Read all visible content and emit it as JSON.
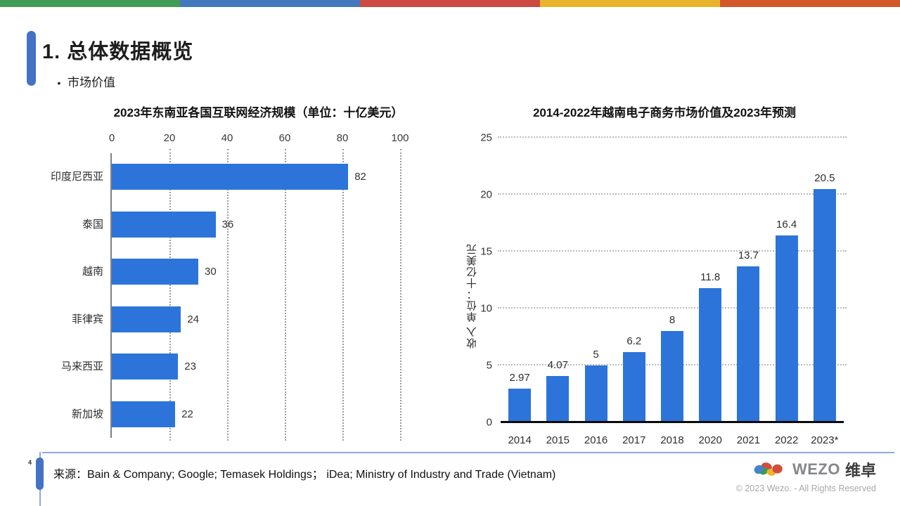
{
  "stripe": {
    "colors": [
      "#429c54",
      "#4478be",
      "#cb4a41",
      "#e9b42b",
      "#d3592b"
    ]
  },
  "header": {
    "title": "1. 总体数据概览",
    "bullet_marker": "•",
    "bullet": "市场价值",
    "accent_color": "#4472c4"
  },
  "chart_data": [
    {
      "type": "bar",
      "orientation": "horizontal",
      "title": "2023年东南亚各国互联网经济规模（单位：十亿美元）",
      "categories": [
        "印度尼西亚",
        "泰国",
        "越南",
        "菲律宾",
        "马来西亚",
        "新加坡"
      ],
      "values": [
        82,
        36,
        30,
        24,
        23,
        22
      ],
      "xlabel": "",
      "ylabel": "",
      "xlim": [
        0,
        100
      ],
      "xticks": [
        0,
        20,
        40,
        60,
        80,
        100
      ],
      "grid": "dotted vertical gridlines at each x tick",
      "axis_position": "ticks on top, solid axis line on left",
      "bar_color": "#2c74da",
      "legend": "none"
    },
    {
      "type": "bar",
      "orientation": "vertical",
      "title": "2014-2022年越南电子商务市场价值及2023年预测",
      "categories": [
        "2014",
        "2015",
        "2016",
        "2017",
        "2018",
        "2020",
        "2021",
        "2022",
        "2023*"
      ],
      "values": [
        2.97,
        4.07,
        5,
        6.2,
        8,
        11.8,
        13.7,
        16.4,
        20.5
      ],
      "value_labels": [
        "2.97",
        "4.07",
        "5",
        "6.2",
        "8",
        "11.8",
        "13.7",
        "16.4",
        "20.5"
      ],
      "xlabel": "",
      "ylabel": "收入 单位：十亿美元",
      "ylim": [
        0,
        25
      ],
      "yticks": [
        0,
        5,
        10,
        15,
        20,
        25
      ],
      "grid": "dotted horizontal gridlines at each y tick, solid black baseline",
      "bar_color": "#2c74da",
      "legend": "none"
    }
  ],
  "footer": {
    "page_number": "4",
    "source": "来源：Bain & Company; Google; Temasek Holdings；  iDea; Ministry of Industry and Trade (Vietnam)",
    "divider_color": "#8fa9d9",
    "accent_color": "#4472c4",
    "brand_name": "WEZO",
    "brand_name_cn": "维卓",
    "copyright": "© 2023 Wezo. - All Rights Reserved",
    "logo_colors": [
      "#4285c8",
      "#d44c3d",
      "#3d9b4f",
      "#f0b32c"
    ]
  }
}
